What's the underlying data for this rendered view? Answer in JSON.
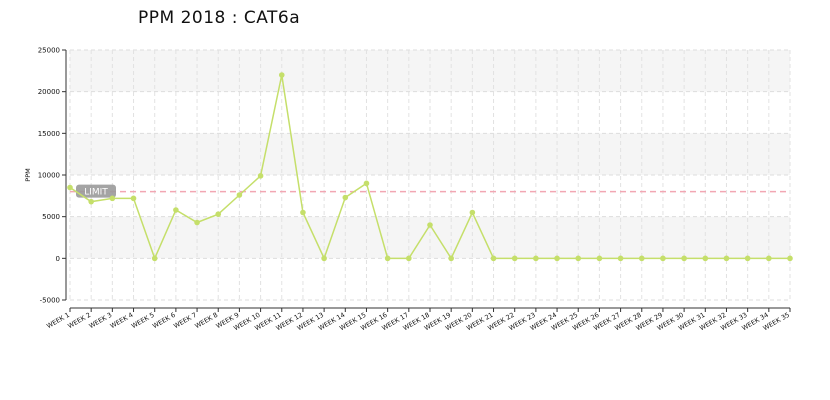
{
  "chart_data": {
    "type": "line",
    "title": "PPM 2018 : CAT6a",
    "ylabel": "PPM",
    "xlabel": "",
    "ylim": [
      -5000,
      25000
    ],
    "yticks": [
      -5000,
      0,
      5000,
      10000,
      15000,
      20000,
      25000
    ],
    "grid": true,
    "categories": [
      "WEEK 1",
      "WEEK 2",
      "WEEK 3",
      "WEEK 4",
      "WEEK 5",
      "WEEK 6",
      "WEEK 7",
      "WEEK 8",
      "WEEK 9",
      "WEEK 10",
      "WEEK 11",
      "WEEK 12",
      "WEEK 13",
      "WEEK 14",
      "WEEK 15",
      "WEEK 16",
      "WEEK 17",
      "WEEK 18",
      "WEEK 19",
      "WEEK 20",
      "WEEK 21",
      "WEEK 22",
      "WEEK 23",
      "WEEK 24",
      "WEEK 25",
      "WEEK 26",
      "WEEK 27",
      "WEEK 28",
      "WEEK 29",
      "WEEK 30",
      "WEEK 31",
      "WEEK 32",
      "WEEK 33",
      "WEEK 34",
      "WEEK 35"
    ],
    "series": [
      {
        "values": [
          8500,
          6800,
          7200,
          7200,
          0,
          5800,
          4300,
          5300,
          7600,
          9900,
          22000,
          5500,
          0,
          7300,
          9000,
          0,
          0,
          4000,
          0,
          5500,
          0,
          0,
          0,
          0,
          0,
          0,
          0,
          0,
          0,
          0,
          0,
          0,
          0,
          0,
          0
        ],
        "color": "#c5df6a"
      }
    ],
    "limit": {
      "label": "LIMIT",
      "value": 8000,
      "color": "#f2a7b3"
    }
  }
}
